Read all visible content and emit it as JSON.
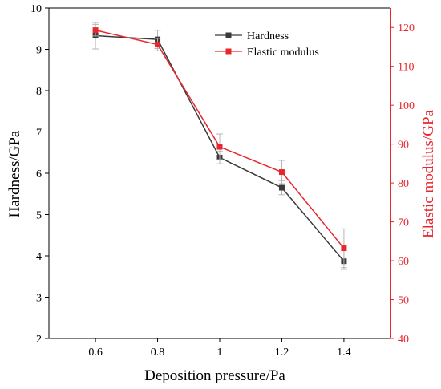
{
  "chart_data": {
    "type": "line",
    "title": "",
    "xlabel": "Deposition pressure/Pa",
    "ylabel_left": "Hardness/GPa",
    "ylabel_right": "Elastic modulus/GPa",
    "x": [
      0.6,
      0.8,
      1.0,
      1.2,
      1.4
    ],
    "x_tick_labels": [
      "0.6",
      "0.8",
      "1",
      "1.2",
      "1.4"
    ],
    "xlim": [
      0.45,
      1.55
    ],
    "ylim_left": [
      2,
      10
    ],
    "ylim_right": [
      40,
      125
    ],
    "y_ticks_left": [
      2,
      3,
      4,
      5,
      6,
      7,
      8,
      9,
      10
    ],
    "y_ticks_right": [
      40,
      50,
      60,
      70,
      80,
      90,
      100,
      110,
      120
    ],
    "grid": false,
    "legend_position": "top-right",
    "series": [
      {
        "name": "Hardness",
        "axis": "left",
        "color": "#3a3a3a",
        "marker": "square",
        "values": [
          9.33,
          9.24,
          6.38,
          5.65,
          3.87
        ],
        "error": [
          0.32,
          0.22,
          0.15,
          0.17,
          0.2
        ]
      },
      {
        "name": "Elastic modulus",
        "axis": "right",
        "color": "#e8262e",
        "marker": "square",
        "values": [
          119.3,
          115.6,
          89.3,
          82.8,
          63.2
        ],
        "error": [
          1.5,
          1.6,
          3.3,
          3.0,
          5.0
        ]
      }
    ]
  }
}
